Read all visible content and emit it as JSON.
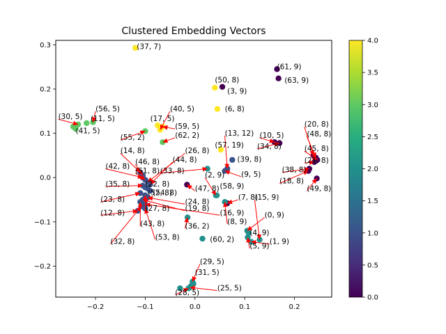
{
  "chart_data": {
    "type": "scatter",
    "title": "Clustered Embedding Vectors",
    "xlabel": "",
    "ylabel": "",
    "xlim": [
      -0.28,
      0.275
    ],
    "ylim": [
      -0.27,
      0.31
    ],
    "xticks": [
      -0.2,
      -0.1,
      0.0,
      0.1,
      0.2
    ],
    "xtick_labels": [
      "−0.2",
      "−0.1",
      "0.0",
      "0.1",
      "0.2"
    ],
    "yticks": [
      -0.3,
      -0.2,
      -0.1,
      0.0,
      0.1,
      0.2,
      0.3
    ],
    "ytick_labels": [
      "−0.3",
      "−0.2",
      "−0.1",
      "0.0",
      "0.1",
      "0.2",
      "0.3"
    ],
    "colorbar": {
      "colormap": "viridis",
      "range": [
        0,
        4
      ],
      "ticks": [
        0.0,
        0.5,
        1.0,
        1.5,
        2.0,
        2.5,
        3.0,
        3.5,
        4.0
      ],
      "tick_labels": [
        "0.0",
        "0.5",
        "1.0",
        "1.5",
        "2.0",
        "2.5",
        "3.0",
        "3.5",
        "4.0"
      ]
    },
    "arrow_color": "#ff0000",
    "points": [
      {
        "x": -0.12,
        "y": 0.293,
        "c": 4,
        "label": "(37, 7)",
        "lx": -0.117,
        "ly": 0.29
      },
      {
        "x": 0.165,
        "y": 0.245,
        "c": 0,
        "label": "(61, 9)",
        "lx": 0.165,
        "ly": 0.245
      },
      {
        "x": 0.168,
        "y": 0.224,
        "c": 0,
        "label": "(63, 9)",
        "lx": 0.18,
        "ly": 0.214
      },
      {
        "x": 0.04,
        "y": 0.203,
        "c": 4,
        "label": "(50, 8)",
        "lx": 0.04,
        "ly": 0.215
      },
      {
        "x": 0.055,
        "y": 0.205,
        "c": 0,
        "label": "(3, 9)",
        "lx": 0.065,
        "ly": 0.19
      },
      {
        "x": 0.045,
        "y": 0.155,
        "c": 4,
        "label": "(6, 8)",
        "lx": 0.06,
        "ly": 0.15
      },
      {
        "x": 0.052,
        "y": 0.063,
        "c": 4,
        "label": "(57, 19)",
        "lx": 0.04,
        "ly": 0.068
      },
      {
        "x": 0.065,
        "y": 0.02,
        "c": 1,
        "label": "(13, 12)",
        "lx": 0.06,
        "ly": 0.095
      },
      {
        "x": 0.075,
        "y": 0.04,
        "c": 1,
        "label": "(39, 8)",
        "lx": 0.085,
        "ly": 0.036
      },
      {
        "x": 0.025,
        "y": 0.02,
        "c": 2,
        "label": "(33, 8)",
        "lx": -0.07,
        "ly": 0.01
      },
      {
        "x": 0.06,
        "y": 0.015,
        "c": 1,
        "label": "(9, 5)",
        "lx": 0.093,
        "ly": 0.002
      },
      {
        "x": -0.016,
        "y": -0.016,
        "c": 0,
        "label": "(47, 8)",
        "lx": 0.0,
        "ly": -0.03
      },
      {
        "x": 0.042,
        "y": -0.04,
        "c": 2,
        "label": "(2, 9)",
        "lx": 0.02,
        "ly": 0.0
      },
      {
        "x": 0.044,
        "y": -0.04,
        "c": 2,
        "label": "(58, 9)",
        "lx": 0.05,
        "ly": -0.025
      },
      {
        "x": 0.065,
        "y": -0.058,
        "c": 0,
        "label": "(7, 8)",
        "lx": 0.087,
        "ly": -0.05
      },
      {
        "x": 0.105,
        "y": -0.12,
        "c": 2,
        "label": "(0, 9)",
        "lx": 0.14,
        "ly": -0.09
      },
      {
        "x": 0.108,
        "y": -0.125,
        "c": 2,
        "label": "(4, 9)",
        "lx": 0.11,
        "ly": -0.13
      },
      {
        "x": 0.106,
        "y": -0.135,
        "c": 2,
        "label": "(5, 9)",
        "lx": 0.11,
        "ly": -0.16
      },
      {
        "x": 0.113,
        "y": -0.145,
        "c": 2,
        "label": "(1, 9)",
        "lx": 0.15,
        "ly": -0.15
      },
      {
        "x": 0.13,
        "y": -0.14,
        "c": 2,
        "label": "(15, 9)",
        "lx": 0.12,
        "ly": -0.05
      },
      {
        "x": 0.16,
        "y": 0.08,
        "c": 0,
        "label": "(10, 5)",
        "lx": 0.13,
        "ly": 0.09
      },
      {
        "x": 0.17,
        "y": 0.078,
        "c": 0,
        "label": "(34, 8)",
        "lx": 0.125,
        "ly": 0.065
      },
      {
        "x": 0.238,
        "y": 0.05,
        "c": 0,
        "label": "(20, 8)",
        "lx": 0.22,
        "ly": 0.115
      },
      {
        "x": 0.243,
        "y": 0.045,
        "c": 0,
        "label": "(48, 8)",
        "lx": 0.225,
        "ly": 0.093
      },
      {
        "x": 0.246,
        "y": 0.04,
        "c": 0,
        "label": "(45, 8)",
        "lx": 0.22,
        "ly": 0.06
      },
      {
        "x": 0.24,
        "y": 0.035,
        "c": 0,
        "label": "(21, 8)",
        "lx": 0.22,
        "ly": 0.033
      },
      {
        "x": 0.23,
        "y": 0.02,
        "c": 0,
        "label": "(38, 8)",
        "lx": 0.175,
        "ly": 0.012
      },
      {
        "x": 0.228,
        "y": 0.015,
        "c": 0,
        "label": "(18, 8)",
        "lx": 0.17,
        "ly": -0.013
      },
      {
        "x": 0.245,
        "y": -0.002,
        "c": 0,
        "label": "(49, 8)",
        "lx": 0.225,
        "ly": -0.03
      },
      {
        "x": -0.205,
        "y": 0.125,
        "c": 3,
        "label": "(56, 5)",
        "lx": -0.2,
        "ly": 0.15
      },
      {
        "x": -0.235,
        "y": 0.12,
        "c": 3,
        "label": "(30, 5)",
        "lx": -0.275,
        "ly": 0.132
      },
      {
        "x": -0.218,
        "y": 0.123,
        "c": 3,
        "label": "(11, 5)",
        "lx": -0.21,
        "ly": 0.128
      },
      {
        "x": -0.24,
        "y": 0.11,
        "c": 3,
        "label": "(41, 5)",
        "lx": -0.24,
        "ly": 0.1
      },
      {
        "x": -0.245,
        "y": 0.115,
        "c": 3,
        "label": "",
        "lx": null,
        "ly": null
      },
      {
        "x": -0.075,
        "y": 0.118,
        "c": 4,
        "label": "(17, 5)",
        "lx": -0.09,
        "ly": 0.128
      },
      {
        "x": -0.065,
        "y": 0.115,
        "c": 4,
        "label": "(59, 5)",
        "lx": -0.04,
        "ly": 0.11
      },
      {
        "x": -0.07,
        "y": 0.108,
        "c": 4,
        "label": "(40, 5)",
        "lx": -0.05,
        "ly": 0.15
      },
      {
        "x": -0.1,
        "y": 0.105,
        "c": 3,
        "label": "(55, 2)",
        "lx": -0.15,
        "ly": 0.085
      },
      {
        "x": -0.065,
        "y": 0.08,
        "c": 3,
        "label": "(62, 2)",
        "lx": -0.04,
        "ly": 0.09
      },
      {
        "x": -0.11,
        "y": 0.012,
        "c": 1,
        "label": "(14, 8)",
        "lx": -0.15,
        "ly": 0.055
      },
      {
        "x": -0.105,
        "y": 0.005,
        "c": 1,
        "label": "(46, 8)",
        "lx": -0.12,
        "ly": 0.03
      },
      {
        "x": -0.105,
        "y": 0.0,
        "c": 1,
        "label": "(42, 8)",
        "lx": -0.18,
        "ly": 0.02
      },
      {
        "x": -0.1,
        "y": -0.005,
        "c": 1,
        "label": "(51, 8)",
        "lx": -0.12,
        "ly": 0.01
      },
      {
        "x": -0.095,
        "y": -0.01,
        "c": 1,
        "label": "(26, 8)",
        "lx": -0.02,
        "ly": 0.055
      },
      {
        "x": -0.09,
        "y": -0.015,
        "c": 1,
        "label": "(44, 8)",
        "lx": -0.045,
        "ly": 0.035
      },
      {
        "x": -0.105,
        "y": -0.018,
        "c": 1,
        "label": "(35, 8)",
        "lx": -0.18,
        "ly": -0.02
      },
      {
        "x": -0.1,
        "y": -0.022,
        "c": 1,
        "label": "(22, 8)",
        "lx": -0.1,
        "ly": -0.02
      },
      {
        "x": -0.095,
        "y": -0.025,
        "c": 1,
        "label": "(52, 8)",
        "lx": -0.095,
        "ly": -0.04
      },
      {
        "x": -0.09,
        "y": -0.03,
        "c": 1,
        "label": "(54, 8)",
        "lx": -0.085,
        "ly": -0.04
      },
      {
        "x": -0.11,
        "y": -0.035,
        "c": 1,
        "label": "(23, 8)",
        "lx": -0.19,
        "ly": -0.055
      },
      {
        "x": -0.1,
        "y": -0.04,
        "c": 1,
        "label": "(27, 8)",
        "lx": -0.1,
        "ly": -0.075
      },
      {
        "x": -0.095,
        "y": -0.045,
        "c": 1,
        "label": "(24, 8)",
        "lx": -0.02,
        "ly": -0.06
      },
      {
        "x": -0.105,
        "y": -0.05,
        "c": 1,
        "label": "(19, 8)",
        "lx": -0.02,
        "ly": -0.075
      },
      {
        "x": -0.11,
        "y": -0.055,
        "c": 1,
        "label": "(43, 8)",
        "lx": -0.11,
        "ly": -0.11
      },
      {
        "x": -0.1,
        "y": -0.06,
        "c": 1,
        "label": "(16, 9)",
        "lx": 0.05,
        "ly": -0.085
      },
      {
        "x": -0.115,
        "y": -0.075,
        "c": 1,
        "label": "(12, 8)",
        "lx": -0.19,
        "ly": -0.085
      },
      {
        "x": -0.108,
        "y": -0.065,
        "c": 1,
        "label": "(32, 8)",
        "lx": -0.17,
        "ly": -0.15
      },
      {
        "x": -0.1,
        "y": -0.07,
        "c": 1,
        "label": "(53, 8)",
        "lx": -0.08,
        "ly": -0.14
      },
      {
        "x": -0.015,
        "y": -0.09,
        "c": 2,
        "label": "(36, 2)",
        "lx": -0.02,
        "ly": -0.115
      },
      {
        "x": 0.015,
        "y": -0.138,
        "c": 2,
        "label": "(60, 2)",
        "lx": 0.03,
        "ly": -0.145
      },
      {
        "x": 0.06,
        "y": -0.055,
        "c": 2,
        "label": "(8, 9)",
        "lx": 0.065,
        "ly": -0.105
      },
      {
        "x": -0.005,
        "y": -0.235,
        "c": 2,
        "label": "(29, 5)",
        "lx": 0.01,
        "ly": -0.195
      },
      {
        "x": -0.003,
        "y": -0.24,
        "c": 2,
        "label": "(31, 5)",
        "lx": 0.0,
        "ly": -0.22
      },
      {
        "x": -0.008,
        "y": -0.245,
        "c": 2,
        "label": "",
        "lx": null,
        "ly": null
      },
      {
        "x": -0.03,
        "y": -0.25,
        "c": 2,
        "label": "",
        "lx": null,
        "ly": null
      },
      {
        "x": -0.013,
        "y": -0.25,
        "c": 2,
        "label": "(28, 5)",
        "lx": -0.04,
        "ly": -0.265
      },
      {
        "x": -0.01,
        "y": -0.248,
        "c": 2,
        "label": "(25, 5)",
        "lx": 0.045,
        "ly": -0.255
      }
    ]
  }
}
